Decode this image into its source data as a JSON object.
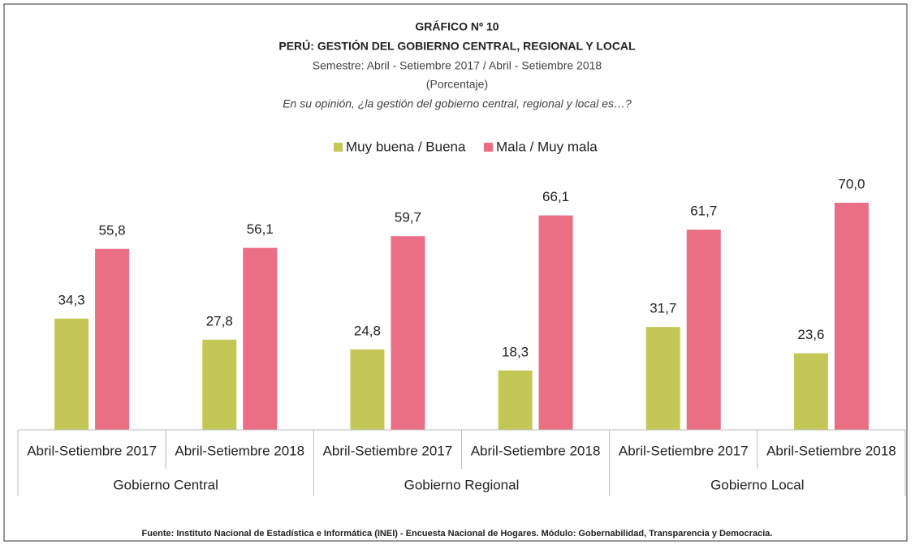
{
  "chart_data": {
    "type": "bar",
    "title": "GRÁFICO Nº 10",
    "subtitle": "PERÚ: GESTIÓN DEL GOBIERNO CENTRAL, REGIONAL Y LOCAL",
    "period": "Semestre: Abril - Setiembre 2017 / Abril - Setiembre 2018",
    "unit": "(Porcentaje)",
    "question": "En su opinión, ¿la gestión del gobierno central, regional y local es…?",
    "categories": [
      "Abril-Setiembre 2017",
      "Abril-Setiembre 2018",
      "Abril-Setiembre 2017",
      "Abril-Setiembre 2018",
      "Abril-Setiembre 2017",
      "Abril-Setiembre 2018"
    ],
    "groups": [
      "Gobierno Central",
      "Gobierno Regional",
      "Gobierno Local"
    ],
    "series": [
      {
        "name": "Muy buena / Buena",
        "color": "#c3c756",
        "values": [
          34.3,
          27.8,
          24.8,
          18.3,
          31.7,
          23.6
        ],
        "value_labels": [
          "34,3",
          "27,8",
          "24,8",
          "18,3",
          "31,7",
          "23,6"
        ]
      },
      {
        "name": "Mala / Muy mala",
        "color": "#ea6f84",
        "values": [
          55.8,
          56.1,
          59.7,
          66.1,
          61.7,
          70.0
        ],
        "value_labels": [
          "55,8",
          "56,1",
          "59,7",
          "66,1",
          "61,7",
          "70,0"
        ]
      }
    ],
    "ylim": [
      0,
      80
    ],
    "legend": "top",
    "source": "Fuente: Instituto Nacional de Estadística e Informática (INEI) - Encuesta Nacional de Hogares. Módulo: Gobernabilidad, Transparencia y Democracia."
  }
}
